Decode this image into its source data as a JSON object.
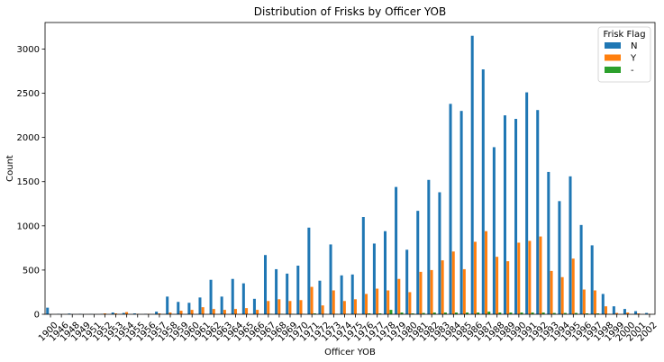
{
  "chart_data": {
    "type": "bar",
    "title": "Distribution of Frisks by Officer YOB",
    "xlabel": "Officer YOB",
    "ylabel": "Count",
    "ylim": [
      0,
      3300
    ],
    "yticks": [
      0,
      500,
      1000,
      1500,
      2000,
      2500,
      3000
    ],
    "grid": false,
    "legend": {
      "title": "Frisk Flag",
      "placement": "top-right"
    },
    "categories": [
      "1900",
      "1946",
      "1948",
      "1949",
      "1951",
      "1952",
      "1953",
      "1954",
      "1955",
      "1956",
      "1957",
      "1958",
      "1959",
      "1960",
      "1961",
      "1962",
      "1963",
      "1964",
      "1965",
      "1966",
      "1967",
      "1968",
      "1969",
      "1970",
      "1971",
      "1972",
      "1973",
      "1974",
      "1975",
      "1976",
      "1977",
      "1978",
      "1979",
      "1980",
      "1981",
      "1982",
      "1983",
      "1984",
      "1985",
      "1986",
      "1987",
      "1988",
      "1989",
      "1990",
      "1991",
      "1992",
      "1993",
      "1994",
      "1995",
      "1996",
      "1997",
      "1998",
      "1999",
      "2000",
      "2001",
      "2002"
    ],
    "series": [
      {
        "name": "N",
        "color": "#1f77b4",
        "values": [
          75,
          5,
          8,
          5,
          3,
          5,
          20,
          15,
          10,
          5,
          30,
          200,
          140,
          130,
          190,
          390,
          200,
          400,
          350,
          175,
          670,
          510,
          460,
          550,
          980,
          380,
          790,
          440,
          450,
          1100,
          800,
          940,
          1440,
          730,
          1170,
          1520,
          1380,
          2380,
          2300,
          3150,
          2770,
          1890,
          2250,
          2210,
          2510,
          2310,
          1610,
          1280,
          1560,
          1010,
          780,
          230,
          90,
          60,
          35,
          15
        ]
      },
      {
        "name": "Y",
        "color": "#ff7f0e",
        "values": [
          0,
          0,
          0,
          0,
          0,
          10,
          10,
          25,
          5,
          5,
          10,
          20,
          40,
          50,
          80,
          60,
          50,
          60,
          70,
          50,
          150,
          170,
          150,
          160,
          310,
          100,
          270,
          150,
          170,
          230,
          290,
          270,
          400,
          250,
          480,
          500,
          610,
          710,
          510,
          820,
          940,
          650,
          600,
          810,
          830,
          880,
          490,
          420,
          630,
          280,
          270,
          90,
          15,
          20,
          10,
          5
        ]
      },
      {
        "name": "-",
        "color": "#2ca02c",
        "values": [
          0,
          0,
          0,
          0,
          0,
          0,
          0,
          0,
          0,
          0,
          0,
          0,
          0,
          0,
          0,
          0,
          0,
          0,
          0,
          0,
          5,
          5,
          5,
          5,
          10,
          5,
          5,
          5,
          5,
          10,
          10,
          50,
          20,
          10,
          15,
          20,
          20,
          20,
          20,
          20,
          30,
          20,
          20,
          20,
          20,
          20,
          15,
          15,
          15,
          10,
          10,
          5,
          0,
          0,
          0,
          0
        ]
      }
    ]
  }
}
